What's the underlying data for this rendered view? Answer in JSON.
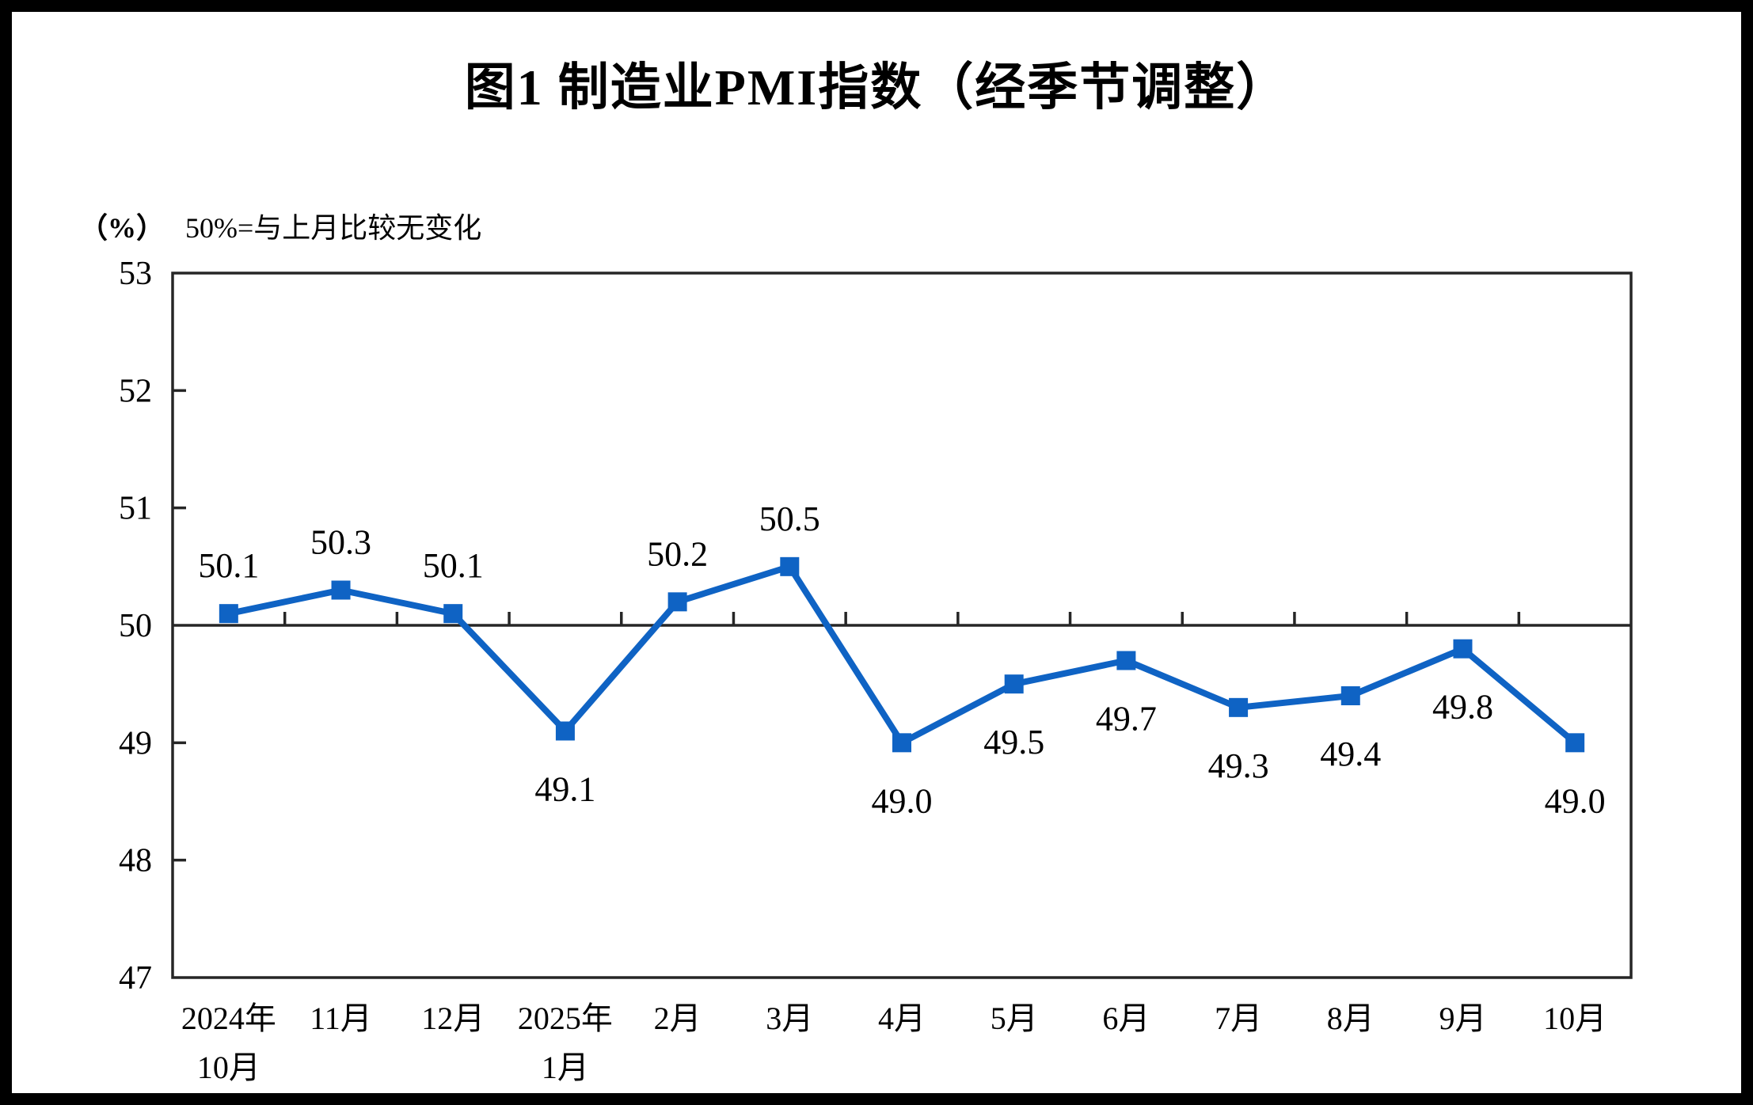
{
  "title": "图1  制造业PMI指数（经季节调整）",
  "subtitle": {
    "unit": "（%）",
    "note": "50%=与上月比较无变化"
  },
  "chart_data": {
    "type": "line",
    "title": "图1  制造业PMI指数（经季节调整）",
    "ylabel_unit": "（%）",
    "annotation": "50%=与上月比较无变化",
    "categories": [
      "2024年\n10月",
      "11月",
      "12月",
      "2025年\n1月",
      "2月",
      "3月",
      "4月",
      "5月",
      "6月",
      "7月",
      "8月",
      "9月",
      "10月"
    ],
    "values": [
      50.1,
      50.3,
      50.1,
      49.1,
      50.2,
      50.5,
      49.0,
      49.5,
      49.7,
      49.3,
      49.4,
      49.8,
      49.0
    ],
    "y_ticks": [
      53,
      52,
      51,
      50,
      49,
      48,
      47
    ],
    "ylim": [
      47,
      53
    ],
    "reference_line": 50,
    "grid": "off",
    "legend": "none",
    "line_color": "#0F63C4",
    "axis_color": "#262626",
    "marker": "square",
    "data_label_decimals": 1
  }
}
